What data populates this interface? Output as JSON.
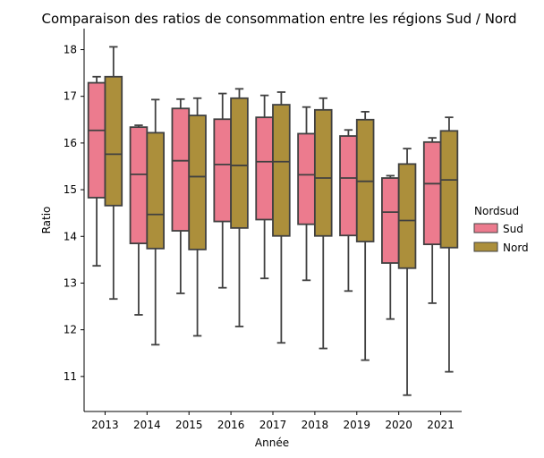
{
  "chart_data": {
    "type": "box",
    "title": "Comparaison des ratios de consommation entre les régions Sud / Nord",
    "xlabel": "Année",
    "ylabel": "Ratio",
    "categories": [
      "2013",
      "2014",
      "2015",
      "2016",
      "2017",
      "2018",
      "2019",
      "2020",
      "2021"
    ],
    "ylim": [
      10.25,
      18.45
    ],
    "yticks": [
      11,
      12,
      13,
      14,
      15,
      16,
      17,
      18
    ],
    "grid": false,
    "legend": {
      "title": "Nordsud",
      "placement": "right"
    },
    "series": [
      {
        "name": "Sud",
        "color": "#ec7b8e",
        "boxes": [
          {
            "whislo": 13.37,
            "q1": 14.83,
            "med": 16.27,
            "q3": 17.29,
            "whishi": 17.42
          },
          {
            "whislo": 12.32,
            "q1": 13.85,
            "med": 15.33,
            "q3": 16.34,
            "whishi": 16.38
          },
          {
            "whislo": 12.78,
            "q1": 14.12,
            "med": 15.62,
            "q3": 16.74,
            "whishi": 16.94
          },
          {
            "whislo": 12.9,
            "q1": 14.32,
            "med": 15.54,
            "q3": 16.51,
            "whishi": 17.06
          },
          {
            "whislo": 13.1,
            "q1": 14.36,
            "med": 15.6,
            "q3": 16.55,
            "whishi": 17.02
          },
          {
            "whislo": 13.06,
            "q1": 14.26,
            "med": 15.32,
            "q3": 16.2,
            "whishi": 16.77
          },
          {
            "whislo": 12.83,
            "q1": 14.02,
            "med": 15.25,
            "q3": 16.15,
            "whishi": 16.28
          },
          {
            "whislo": 12.23,
            "q1": 13.43,
            "med": 14.52,
            "q3": 15.25,
            "whishi": 15.3
          },
          {
            "whislo": 12.57,
            "q1": 13.83,
            "med": 15.13,
            "q3": 16.02,
            "whishi": 16.11
          }
        ]
      },
      {
        "name": "Nord",
        "color": "#ac8f3b",
        "boxes": [
          {
            "whislo": 12.66,
            "q1": 14.66,
            "med": 15.76,
            "q3": 17.42,
            "whishi": 18.06
          },
          {
            "whislo": 11.68,
            "q1": 13.74,
            "med": 14.47,
            "q3": 16.22,
            "whishi": 16.93
          },
          {
            "whislo": 11.87,
            "q1": 13.72,
            "med": 15.28,
            "q3": 16.59,
            "whishi": 16.96
          },
          {
            "whislo": 12.07,
            "q1": 14.18,
            "med": 15.52,
            "q3": 16.96,
            "whishi": 17.16
          },
          {
            "whislo": 11.72,
            "q1": 14.01,
            "med": 15.6,
            "q3": 16.82,
            "whishi": 17.09
          },
          {
            "whislo": 11.6,
            "q1": 14.01,
            "med": 15.25,
            "q3": 16.71,
            "whishi": 16.96
          },
          {
            "whislo": 11.35,
            "q1": 13.89,
            "med": 15.18,
            "q3": 16.5,
            "whishi": 16.67
          },
          {
            "whislo": 10.6,
            "q1": 13.32,
            "med": 14.34,
            "q3": 15.55,
            "whishi": 15.88
          },
          {
            "whislo": 11.1,
            "q1": 13.76,
            "med": 15.21,
            "q3": 16.26,
            "whishi": 16.55
          }
        ]
      }
    ]
  }
}
